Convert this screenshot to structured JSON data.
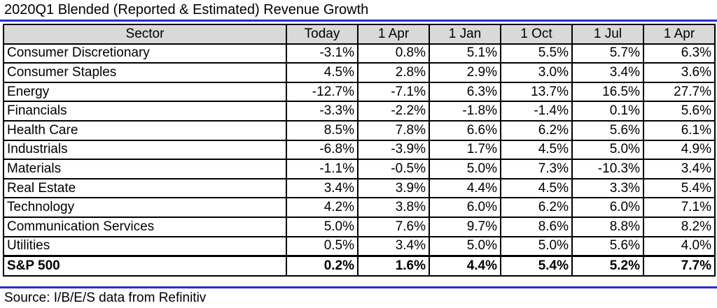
{
  "title": "2020Q1 Blended (Reported & Estimated) Revenue Growth",
  "source": "Source: I/B/E/S data from Refinitiv",
  "colors": {
    "rule": "#2a2ad0",
    "header_bg": "#d9d9d9"
  },
  "chart_data": {
    "type": "table",
    "title": "2020Q1 Blended (Reported & Estimated) Revenue Growth",
    "columns": [
      "Sector",
      "Today",
      "1 Apr",
      "1 Jan",
      "1 Oct",
      "1 Jul",
      "1 Apr"
    ],
    "rows": [
      [
        "Consumer Discretionary",
        "-3.1%",
        "0.8%",
        "5.1%",
        "5.5%",
        "5.7%",
        "6.3%"
      ],
      [
        "Consumer Staples",
        "4.5%",
        "2.8%",
        "2.9%",
        "3.0%",
        "3.4%",
        "3.6%"
      ],
      [
        "Energy",
        "-12.7%",
        "-7.1%",
        "6.3%",
        "13.7%",
        "16.5%",
        "27.7%"
      ],
      [
        "Financials",
        "-3.3%",
        "-2.2%",
        "-1.8%",
        "-1.4%",
        "0.1%",
        "5.6%"
      ],
      [
        "Health Care",
        "8.5%",
        "7.8%",
        "6.6%",
        "6.2%",
        "5.6%",
        "6.1%"
      ],
      [
        "Industrials",
        "-6.8%",
        "-3.9%",
        "1.7%",
        "4.5%",
        "5.0%",
        "4.9%"
      ],
      [
        "Materials",
        "-1.1%",
        "-0.5%",
        "5.0%",
        "7.3%",
        "-10.3%",
        "3.4%"
      ],
      [
        "Real Estate",
        "3.4%",
        "3.9%",
        "4.4%",
        "4.5%",
        "3.3%",
        "5.4%"
      ],
      [
        "Technology",
        "4.2%",
        "3.8%",
        "6.0%",
        "6.2%",
        "6.0%",
        "7.1%"
      ],
      [
        "Communication Services",
        "5.0%",
        "7.6%",
        "9.7%",
        "8.6%",
        "8.8%",
        "8.2%"
      ],
      [
        "Utilities",
        "0.5%",
        "3.4%",
        "5.0%",
        "5.0%",
        "5.6%",
        "4.0%"
      ]
    ],
    "total_row": [
      "S&P 500",
      "0.2%",
      "1.6%",
      "4.4%",
      "5.4%",
      "5.2%",
      "7.7%"
    ]
  }
}
